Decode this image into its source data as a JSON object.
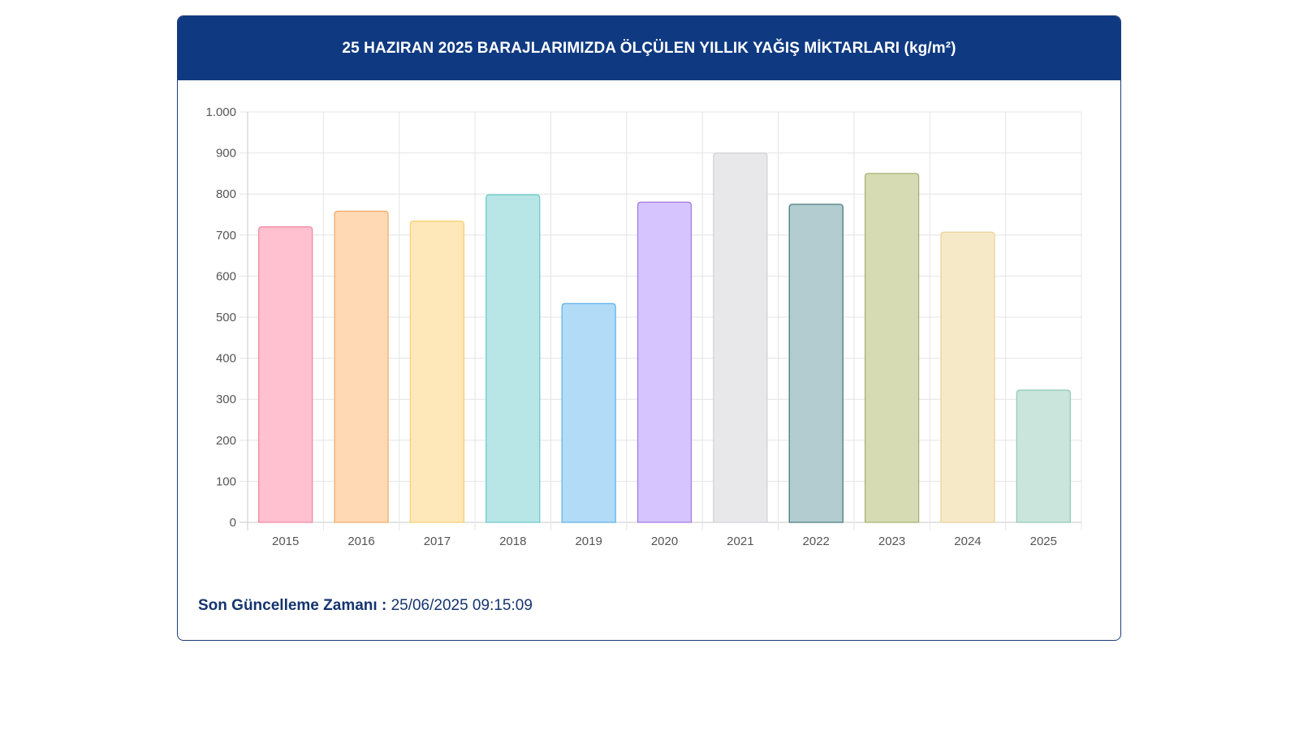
{
  "header": {
    "title": "25 HAZIRAN 2025 BARAJLARIMIZDA ÖLÇÜLEN YILLIK YAĞIŞ MİKTARLARI (kg/m²)"
  },
  "footer": {
    "label": "Son Güncelleme Zamanı :",
    "value": "25/06/2025 09:15:09"
  },
  "chart_data": {
    "type": "bar",
    "title": "25 HAZIRAN 2025 BARAJLARIMIZDA ÖLÇÜLEN YILLIK YAĞIŞ MİKTARLARI (kg/m²)",
    "xlabel": "",
    "ylabel": "",
    "ylim": [
      0,
      1000
    ],
    "yticks": [
      0,
      100,
      200,
      300,
      400,
      500,
      600,
      700,
      800,
      900,
      1000
    ],
    "ytick_labels": [
      "0",
      "100",
      "200",
      "300",
      "400",
      "500",
      "600",
      "700",
      "800",
      "900",
      "1.000"
    ],
    "grid": true,
    "categories": [
      "2015",
      "2016",
      "2017",
      "2018",
      "2019",
      "2020",
      "2021",
      "2022",
      "2023",
      "2024",
      "2025"
    ],
    "values": [
      720,
      758,
      734,
      798,
      533,
      780,
      900,
      775,
      850,
      707,
      322
    ],
    "colors": [
      {
        "fill": "#ffc0cf",
        "stroke": "#f28aa3"
      },
      {
        "fill": "#fed9b3",
        "stroke": "#f2ad6c"
      },
      {
        "fill": "#fee8b9",
        "stroke": "#f7cf73"
      },
      {
        "fill": "#b8e6e6",
        "stroke": "#6ccbcb"
      },
      {
        "fill": "#b1dbf7",
        "stroke": "#62b3ea"
      },
      {
        "fill": "#d5c4fd",
        "stroke": "#a27ee8"
      },
      {
        "fill": "#e8e8ea",
        "stroke": "#d2d3d6"
      },
      {
        "fill": "#b2cccf",
        "stroke": "#4d7b80"
      },
      {
        "fill": "#d6dbb3",
        "stroke": "#a9b277"
      },
      {
        "fill": "#f6e9c8",
        "stroke": "#e9d39a"
      },
      {
        "fill": "#c9e5dc",
        "stroke": "#93cbb8"
      }
    ]
  }
}
